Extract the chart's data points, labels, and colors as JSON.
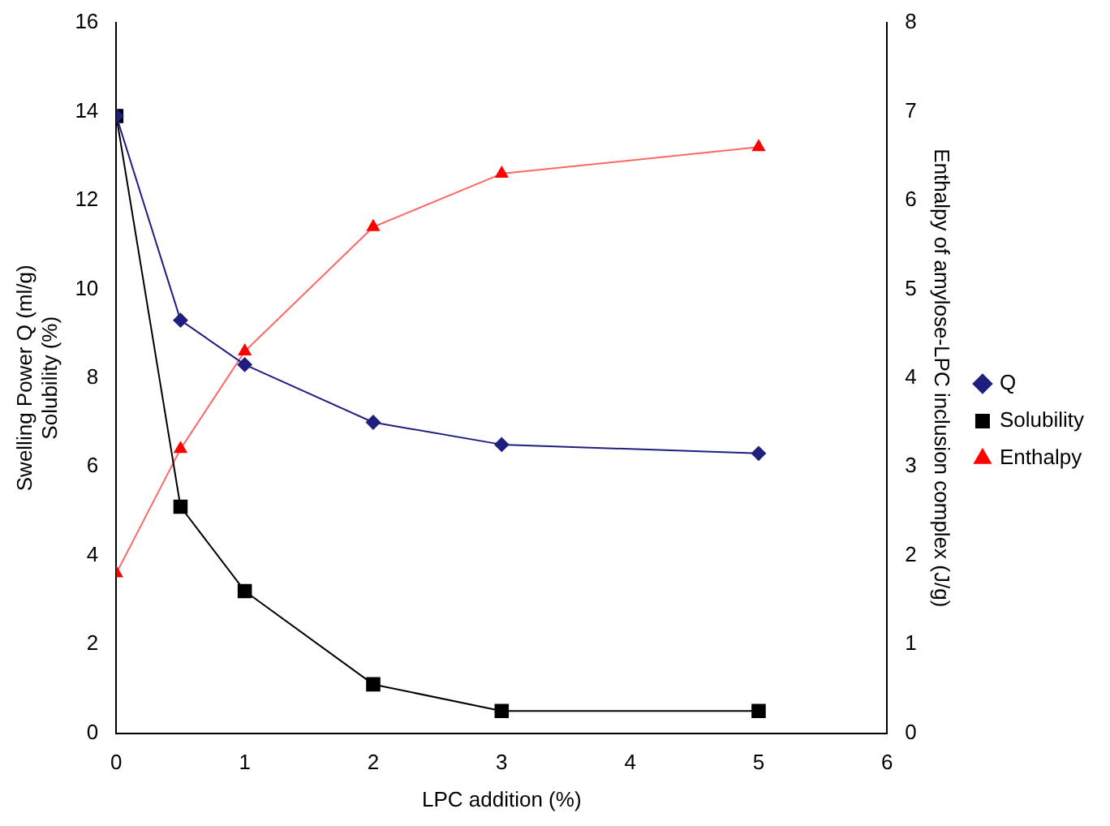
{
  "chart_data": {
    "type": "line",
    "xlabel": "LPC addition (%)",
    "ylabel": "Swelling Power Q (ml/g)\nSolubility (%)",
    "y2label": "Enthalpy of amylose-LPC inclusion complex (J/g)",
    "x": [
      0,
      0.5,
      1,
      2,
      3,
      5
    ],
    "series": [
      {
        "name": "Q",
        "color": "#1f1f7f",
        "marker": "diamond",
        "values": [
          13.9,
          9.3,
          8.3,
          7.0,
          6.5,
          6.3
        ]
      },
      {
        "name": "Solubility",
        "color": "#000000",
        "marker": "square",
        "values": [
          13.9,
          5.1,
          3.2,
          1.1,
          0.5,
          0.5
        ]
      },
      {
        "name": "Enthalpy",
        "color": "#ff0000",
        "marker": "triangle",
        "axis": "y2",
        "values": [
          1.8,
          3.2,
          4.3,
          5.7,
          6.3,
          6.6
        ]
      }
    ],
    "xlim": [
      0,
      6
    ],
    "xticks": [
      0,
      1,
      2,
      3,
      4,
      5,
      6
    ],
    "ylim": [
      0,
      16
    ],
    "yticks": [
      0,
      2,
      4,
      6,
      8,
      10,
      12,
      14,
      16
    ],
    "y2lim": [
      0,
      8
    ],
    "y2ticks": [
      0,
      1,
      2,
      3,
      4,
      5,
      6,
      7,
      8
    ],
    "grid": false,
    "legend": "right",
    "line_style": "solid"
  }
}
